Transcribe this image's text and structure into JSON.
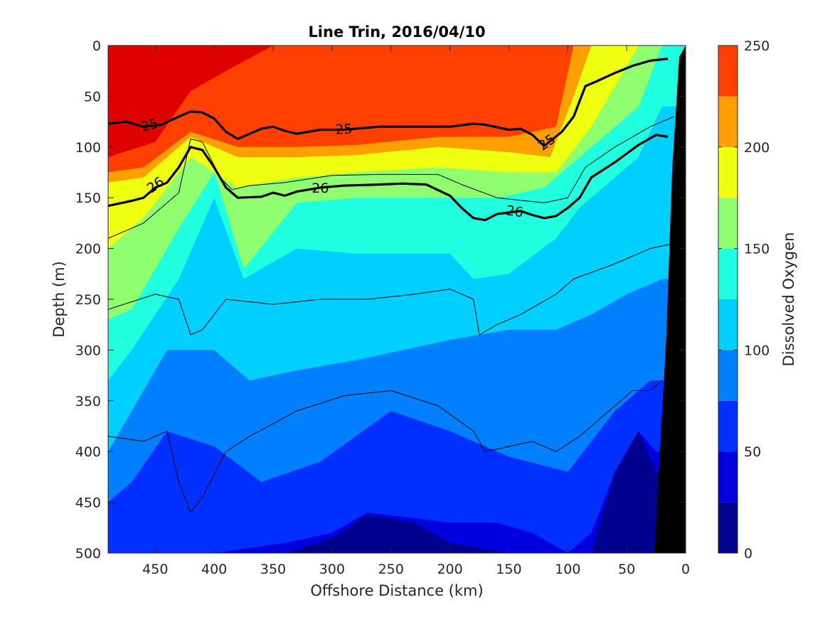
{
  "chart_data": {
    "type": "heatmap",
    "title": "Line Trin, 2016/04/10",
    "xlabel": "Offshore Distance (km)",
    "ylabel": "Depth (m)",
    "xlim": [
      490,
      0
    ],
    "ylim": [
      0,
      500
    ],
    "x_reversed": true,
    "y_reversed": true,
    "xticks": [
      450,
      400,
      350,
      300,
      250,
      200,
      150,
      100,
      50,
      0
    ],
    "yticks": [
      0,
      50,
      100,
      150,
      200,
      250,
      300,
      350,
      400,
      450,
      500
    ],
    "colorbar": {
      "label": "Dissolved Oxygen",
      "range": [
        0,
        250
      ],
      "ticks": [
        0,
        50,
        100,
        150,
        200,
        250
      ],
      "levels": [
        0,
        25,
        50,
        75,
        100,
        125,
        150,
        175,
        200,
        225,
        250
      ],
      "colors": [
        "#00008f",
        "#0000df",
        "#0030ff",
        "#0080ff",
        "#00cfff",
        "#20ffdf",
        "#8fff70",
        "#efff10",
        "#ffa000",
        "#ff4000",
        "#df0000"
      ]
    },
    "dissolved_oxygen_bands": [
      {
        "range": [
          225,
          250
        ],
        "depth_by_distance": [
          [
            490,
            110
          ],
          [
            450,
            95
          ],
          [
            420,
            45
          ],
          [
            390,
            25
          ],
          [
            350,
            0
          ],
          [
            300,
            0
          ],
          [
            250,
            0
          ],
          [
            210,
            0
          ]
        ]
      },
      {
        "range": [
          200,
          225
        ],
        "depth_by_distance": [
          [
            490,
            125
          ],
          [
            460,
            120
          ],
          [
            420,
            85
          ],
          [
            380,
            100
          ],
          [
            330,
            100
          ],
          [
            280,
            98
          ],
          [
            210,
            90
          ],
          [
            150,
            90
          ],
          [
            110,
            80
          ],
          [
            95,
            0
          ]
        ]
      },
      {
        "range": [
          175,
          200
        ],
        "depth_by_distance": [
          [
            490,
            135
          ],
          [
            460,
            130
          ],
          [
            420,
            90
          ],
          [
            380,
            110
          ],
          [
            330,
            110
          ],
          [
            280,
            108
          ],
          [
            210,
            100
          ],
          [
            150,
            105
          ],
          [
            115,
            110
          ],
          [
            95,
            50
          ],
          [
            80,
            0
          ]
        ]
      },
      {
        "range": [
          150,
          175
        ],
        "depth_by_distance": [
          [
            490,
            200
          ],
          [
            460,
            170
          ],
          [
            420,
            110
          ],
          [
            380,
            140
          ],
          [
            330,
            130
          ],
          [
            280,
            125
          ],
          [
            210,
            120
          ],
          [
            150,
            125
          ],
          [
            110,
            125
          ],
          [
            80,
            80
          ],
          [
            40,
            0
          ]
        ]
      },
      {
        "range": [
          125,
          150
        ],
        "depth_by_distance": [
          [
            490,
            270
          ],
          [
            470,
            260
          ],
          [
            430,
            180
          ],
          [
            400,
            125
          ],
          [
            375,
            220
          ],
          [
            330,
            155
          ],
          [
            280,
            150
          ],
          [
            200,
            150
          ],
          [
            160,
            150
          ],
          [
            120,
            140
          ],
          [
            80,
            100
          ],
          [
            40,
            60
          ],
          [
            20,
            0
          ]
        ]
      },
      {
        "range": [
          100,
          125
        ],
        "depth_by_distance": [
          [
            490,
            330
          ],
          [
            470,
            300
          ],
          [
            430,
            230
          ],
          [
            400,
            150
          ],
          [
            375,
            230
          ],
          [
            330,
            200
          ],
          [
            280,
            205
          ],
          [
            200,
            205
          ],
          [
            180,
            230
          ],
          [
            150,
            225
          ],
          [
            110,
            190
          ],
          [
            90,
            160
          ],
          [
            40,
            110
          ],
          [
            20,
            60
          ]
        ]
      },
      {
        "range": [
          75,
          100
        ],
        "depth_by_distance": [
          [
            490,
            400
          ],
          [
            470,
            360
          ],
          [
            440,
            300
          ],
          [
            400,
            300
          ],
          [
            370,
            330
          ],
          [
            330,
            320
          ],
          [
            280,
            310
          ],
          [
            200,
            290
          ],
          [
            150,
            280
          ],
          [
            110,
            280
          ],
          [
            80,
            265
          ],
          [
            50,
            245
          ],
          [
            20,
            230
          ]
        ]
      },
      {
        "range": [
          50,
          75
        ],
        "depth_by_distance": [
          [
            490,
            450
          ],
          [
            470,
            430
          ],
          [
            440,
            380
          ],
          [
            400,
            395
          ],
          [
            360,
            430
          ],
          [
            310,
            410
          ],
          [
            250,
            360
          ],
          [
            200,
            380
          ],
          [
            150,
            405
          ],
          [
            100,
            420
          ],
          [
            60,
            360
          ],
          [
            30,
            330
          ]
        ]
      },
      {
        "range": [
          25,
          50
        ],
        "depth_by_distance": [
          [
            490,
            500
          ],
          [
            400,
            500
          ],
          [
            340,
            490
          ],
          [
            300,
            480
          ],
          [
            270,
            460
          ],
          [
            200,
            470
          ],
          [
            160,
            470
          ],
          [
            130,
            480
          ],
          [
            100,
            500
          ],
          [
            80,
            480
          ],
          [
            60,
            420
          ],
          [
            40,
            380
          ],
          [
            25,
            400
          ]
        ]
      },
      {
        "range": [
          0,
          25
        ],
        "depth_by_distance": [
          [
            340,
            500
          ],
          [
            300,
            485
          ],
          [
            270,
            462
          ],
          [
            230,
            470
          ],
          [
            200,
            490
          ],
          [
            150,
            500
          ],
          [
            80,
            500
          ],
          [
            60,
            420
          ],
          [
            40,
            380
          ],
          [
            25,
            420
          ]
        ]
      }
    ],
    "density_contours": [
      {
        "label": "25",
        "emphasized": true,
        "depth_by_distance": [
          [
            490,
            77
          ],
          [
            475,
            75
          ],
          [
            460,
            80
          ],
          [
            445,
            78
          ],
          [
            430,
            70
          ],
          [
            420,
            65
          ],
          [
            410,
            66
          ],
          [
            400,
            72
          ],
          [
            390,
            85
          ],
          [
            380,
            92
          ],
          [
            370,
            87
          ],
          [
            360,
            82
          ],
          [
            350,
            80
          ],
          [
            340,
            84
          ],
          [
            330,
            87
          ],
          [
            310,
            83
          ],
          [
            290,
            83
          ],
          [
            260,
            80
          ],
          [
            200,
            80
          ],
          [
            180,
            77
          ],
          [
            170,
            78
          ],
          [
            150,
            83
          ],
          [
            140,
            82
          ],
          [
            130,
            88
          ],
          [
            120,
            99
          ],
          [
            105,
            85
          ],
          [
            95,
            70
          ],
          [
            85,
            40
          ],
          [
            75,
            35
          ],
          [
            60,
            27
          ],
          [
            45,
            20
          ],
          [
            30,
            15
          ],
          [
            15,
            13
          ]
        ]
      },
      {
        "label": "26",
        "emphasized": true,
        "depth_by_distance": [
          [
            490,
            158
          ],
          [
            470,
            153
          ],
          [
            460,
            150
          ],
          [
            450,
            140
          ],
          [
            440,
            135
          ],
          [
            430,
            120
          ],
          [
            420,
            100
          ],
          [
            410,
            103
          ],
          [
            400,
            120
          ],
          [
            390,
            140
          ],
          [
            380,
            150
          ],
          [
            360,
            149
          ],
          [
            350,
            145
          ],
          [
            340,
            148
          ],
          [
            330,
            144
          ],
          [
            310,
            140
          ],
          [
            290,
            138
          ],
          [
            260,
            137
          ],
          [
            240,
            136
          ],
          [
            220,
            137
          ],
          [
            200,
            148
          ],
          [
            190,
            160
          ],
          [
            180,
            170
          ],
          [
            170,
            172
          ],
          [
            160,
            166
          ],
          [
            140,
            163
          ],
          [
            130,
            167
          ],
          [
            120,
            170
          ],
          [
            110,
            168
          ],
          [
            100,
            160
          ],
          [
            90,
            150
          ],
          [
            80,
            130
          ],
          [
            60,
            115
          ],
          [
            40,
            98
          ],
          [
            25,
            88
          ],
          [
            15,
            90
          ]
        ]
      },
      {
        "label": "",
        "emphasized": false,
        "depth_by_distance": [
          [
            490,
            190
          ],
          [
            460,
            175
          ],
          [
            430,
            145
          ],
          [
            420,
            92
          ],
          [
            410,
            95
          ],
          [
            395,
            130
          ],
          [
            385,
            142
          ],
          [
            370,
            138
          ],
          [
            340,
            135
          ],
          [
            300,
            128
          ],
          [
            260,
            127
          ],
          [
            210,
            127
          ],
          [
            190,
            137
          ],
          [
            160,
            150
          ],
          [
            120,
            155
          ],
          [
            100,
            150
          ],
          [
            85,
            120
          ],
          [
            60,
            100
          ],
          [
            30,
            80
          ],
          [
            10,
            70
          ]
        ]
      },
      {
        "label": "",
        "emphasized": false,
        "depth_by_distance": [
          [
            490,
            260
          ],
          [
            450,
            245
          ],
          [
            430,
            250
          ],
          [
            420,
            285
          ],
          [
            410,
            280
          ],
          [
            390,
            250
          ],
          [
            350,
            255
          ],
          [
            310,
            250
          ],
          [
            270,
            250
          ],
          [
            230,
            245
          ],
          [
            200,
            240
          ],
          [
            180,
            250
          ],
          [
            175,
            285
          ],
          [
            160,
            275
          ],
          [
            140,
            265
          ],
          [
            110,
            245
          ],
          [
            95,
            230
          ],
          [
            60,
            215
          ],
          [
            30,
            200
          ],
          [
            10,
            195
          ]
        ]
      },
      {
        "label": "",
        "emphasized": false,
        "depth_by_distance": [
          [
            490,
            385
          ],
          [
            460,
            390
          ],
          [
            440,
            380
          ],
          [
            430,
            430
          ],
          [
            420,
            460
          ],
          [
            410,
            445
          ],
          [
            390,
            400
          ],
          [
            370,
            385
          ],
          [
            330,
            360
          ],
          [
            290,
            345
          ],
          [
            250,
            340
          ],
          [
            210,
            355
          ],
          [
            180,
            380
          ],
          [
            170,
            400
          ],
          [
            150,
            395
          ],
          [
            130,
            390
          ],
          [
            110,
            400
          ],
          [
            90,
            385
          ],
          [
            70,
            365
          ],
          [
            45,
            340
          ],
          [
            30,
            340
          ],
          [
            20,
            330
          ]
        ]
      }
    ]
  }
}
